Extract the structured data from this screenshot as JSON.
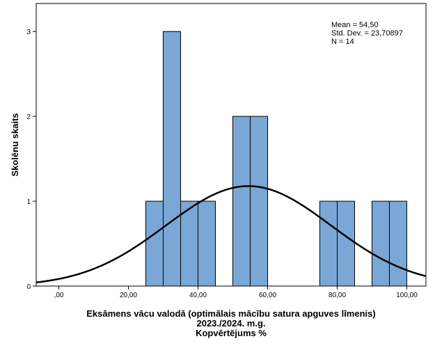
{
  "chart_data": {
    "type": "bar",
    "subtype": "histogram",
    "bin_width": 5,
    "bins": [
      {
        "start": 25,
        "end": 30,
        "count": 1
      },
      {
        "start": 30,
        "end": 35,
        "count": 3
      },
      {
        "start": 35,
        "end": 40,
        "count": 1
      },
      {
        "start": 40,
        "end": 45,
        "count": 1
      },
      {
        "start": 50,
        "end": 55,
        "count": 2
      },
      {
        "start": 55,
        "end": 60,
        "count": 2
      },
      {
        "start": 75,
        "end": 80,
        "count": 1
      },
      {
        "start": 80,
        "end": 85,
        "count": 1
      },
      {
        "start": 90,
        "end": 95,
        "count": 1
      },
      {
        "start": 95,
        "end": 100,
        "count": 1
      }
    ],
    "normal_curve": {
      "mean": 54.5,
      "sd": 23.70897,
      "n": 14
    },
    "stats": {
      "mean": "Mean = 54,50",
      "sd": "Std. Dev. = 23,70897",
      "n": "N = 14"
    },
    "xlabel_lines": [
      "Eksāmens vācu valodā (optimālais mācību satura apguves līmenis)",
      "2023./2024. m.g.",
      "Kopvērtējums %"
    ],
    "ylabel": "Skolēnu skaits",
    "x_ticks": [
      {
        "value": 0,
        "label": ",00"
      },
      {
        "value": 20,
        "label": "20,00"
      },
      {
        "value": 40,
        "label": "40,00"
      },
      {
        "value": 60,
        "label": "60,00"
      },
      {
        "value": 80,
        "label": "80,00"
      },
      {
        "value": 100,
        "label": "100,00"
      }
    ],
    "y_ticks": [
      {
        "value": 0,
        "label": "0"
      },
      {
        "value": 1,
        "label": "1"
      },
      {
        "value": 2,
        "label": "2"
      },
      {
        "value": 3,
        "label": "3"
      }
    ],
    "xlim": [
      -6.5,
      105.5
    ],
    "ylim": [
      0,
      3.33
    ],
    "bar_color": "#7aa7d6",
    "grid": false,
    "legend": false
  }
}
